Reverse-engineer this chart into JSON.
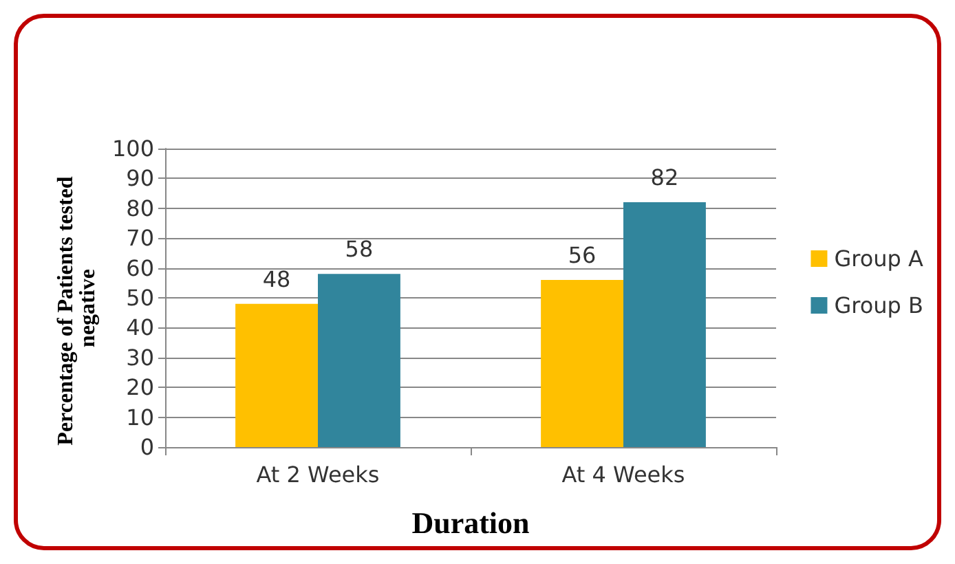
{
  "chart_data": {
    "type": "bar",
    "categories": [
      "At 2 Weeks",
      "At 4 Weeks"
    ],
    "series": [
      {
        "name": "Group A",
        "color": "#ffc000",
        "values": [
          48,
          56
        ]
      },
      {
        "name": "Group B",
        "color": "#31859c",
        "values": [
          58,
          82
        ]
      }
    ],
    "xlabel": "Duration",
    "ylabel": "Percentage of Patients tested negative",
    "ylim": [
      0,
      100
    ],
    "yticks": [
      0,
      10,
      20,
      30,
      40,
      50,
      60,
      70,
      80,
      90,
      100
    ],
    "grid": "y",
    "legend": "right",
    "data_labels": true
  }
}
